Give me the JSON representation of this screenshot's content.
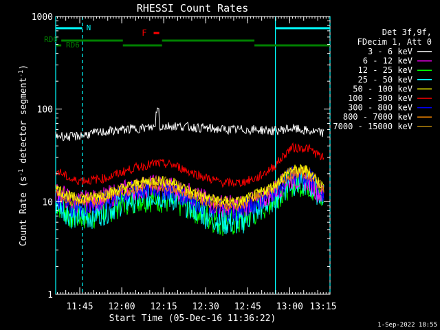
{
  "chart_data": {
    "type": "line",
    "title": "RHESSI Count Rates",
    "xlabel": "Start Time (05-Dec-16 11:36:22)",
    "ylabel_main": "Count Rate (s",
    "ylabel_sup": "-1",
    "ylabel_tail": " detector segment",
    "ylabel_sup2": "-1",
    "ylabel_close": ")",
    "y_scale": "log",
    "ylim": [
      1,
      1000
    ],
    "xlim_minutes": [
      0,
      98
    ],
    "x_ticks": [
      {
        "label": "11:45",
        "minutes": 8.6
      },
      {
        "label": "12:00",
        "minutes": 23.6
      },
      {
        "label": "12:15",
        "minutes": 38.6
      },
      {
        "label": "12:30",
        "minutes": 53.6
      },
      {
        "label": "12:45",
        "minutes": 68.6
      },
      {
        "label": "13:00",
        "minutes": 83.6
      },
      {
        "label": "13:15",
        "minutes": 98.6
      }
    ],
    "y_ticks": [
      {
        "label": "1",
        "value": 1
      },
      {
        "label": "10",
        "value": 10
      },
      {
        "label": "100",
        "value": 100
      },
      {
        "label": "1000",
        "value": 1000
      }
    ],
    "legend_header": [
      "Det 3f,9f,",
      "FDecim 1, Att 0"
    ],
    "legend_position": "right",
    "series": [
      {
        "name": "3 - 6 keV",
        "color": "#ffffff",
        "values": [
          52,
          50,
          54,
          57,
          60,
          62,
          64,
          66,
          64,
          62,
          60,
          60,
          60,
          58,
          62,
          58,
          55
        ]
      },
      {
        "name": "6 - 12 keV",
        "color": "#ff00ff",
        "values": [
          13,
          10,
          10,
          11,
          13,
          14,
          15,
          14,
          12,
          10,
          9,
          9,
          10,
          13,
          18,
          17,
          11
        ]
      },
      {
        "name": "12 - 25 keV",
        "color": "#00ff00",
        "values": [
          10,
          7,
          7,
          8,
          10,
          11,
          11,
          10,
          9,
          7,
          6,
          6,
          8,
          11,
          16,
          16,
          10
        ]
      },
      {
        "name": "25 - 50 keV",
        "color": "#00ffff",
        "values": [
          10,
          7,
          7,
          8,
          10,
          11,
          12,
          11,
          9,
          7,
          6,
          6,
          8,
          11,
          16,
          16,
          11
        ]
      },
      {
        "name": "50 - 100 keV",
        "color": "#ffff00",
        "values": [
          14,
          11,
          11,
          12,
          14,
          16,
          17,
          16,
          13,
          11,
          10,
          10,
          12,
          15,
          22,
          22,
          14
        ]
      },
      {
        "name": "100 - 300 keV",
        "color": "#ff0000",
        "values": [
          22,
          17,
          17,
          18,
          21,
          24,
          26,
          25,
          21,
          18,
          16,
          16,
          18,
          24,
          38,
          38,
          29
        ]
      },
      {
        "name": "300 - 800 keV",
        "color": "#0000ff",
        "values": [
          11,
          9,
          9,
          10,
          12,
          13,
          14,
          13,
          11,
          9,
          8,
          8,
          10,
          13,
          19,
          19,
          12
        ]
      },
      {
        "name": "800 - 7000 keV",
        "color": "#ff8c00",
        "values": [
          12,
          10,
          10,
          11,
          13,
          14,
          15,
          14,
          12,
          10,
          9,
          9,
          11,
          14,
          20,
          20,
          13
        ]
      },
      {
        "name": "7000 - 15000 keV",
        "color": "#b8860b",
        "values": [
          14,
          11,
          11,
          12,
          14,
          16,
          17,
          16,
          13,
          11,
          10,
          10,
          12,
          15,
          22,
          22,
          14
        ]
      }
    ],
    "series_x_minutes": [
      0,
      6,
      12,
      18,
      24,
      30,
      36,
      42,
      48,
      54,
      60,
      66,
      72,
      78,
      84,
      90,
      96
    ],
    "annotations": {
      "n_label": "N",
      "f_label": "F",
      "rd0_label": "RD0",
      "rd6_label": "RD6",
      "night_intervals": [
        [
          0,
          9.5
        ],
        [
          78.5,
          98
        ]
      ],
      "flare_interval": [
        35,
        37
      ],
      "decim_high": [
        [
          2,
          24
        ],
        [
          38,
          71
        ]
      ],
      "decim_low": [
        [
          0,
          2
        ],
        [
          24,
          38
        ],
        [
          71,
          98
        ]
      ]
    },
    "colors": {
      "night": "#00ffff",
      "decim": "#008000",
      "flare": "#ff0000"
    }
  },
  "footer": {
    "timestamp": "1-Sep-2022 18:55"
  }
}
